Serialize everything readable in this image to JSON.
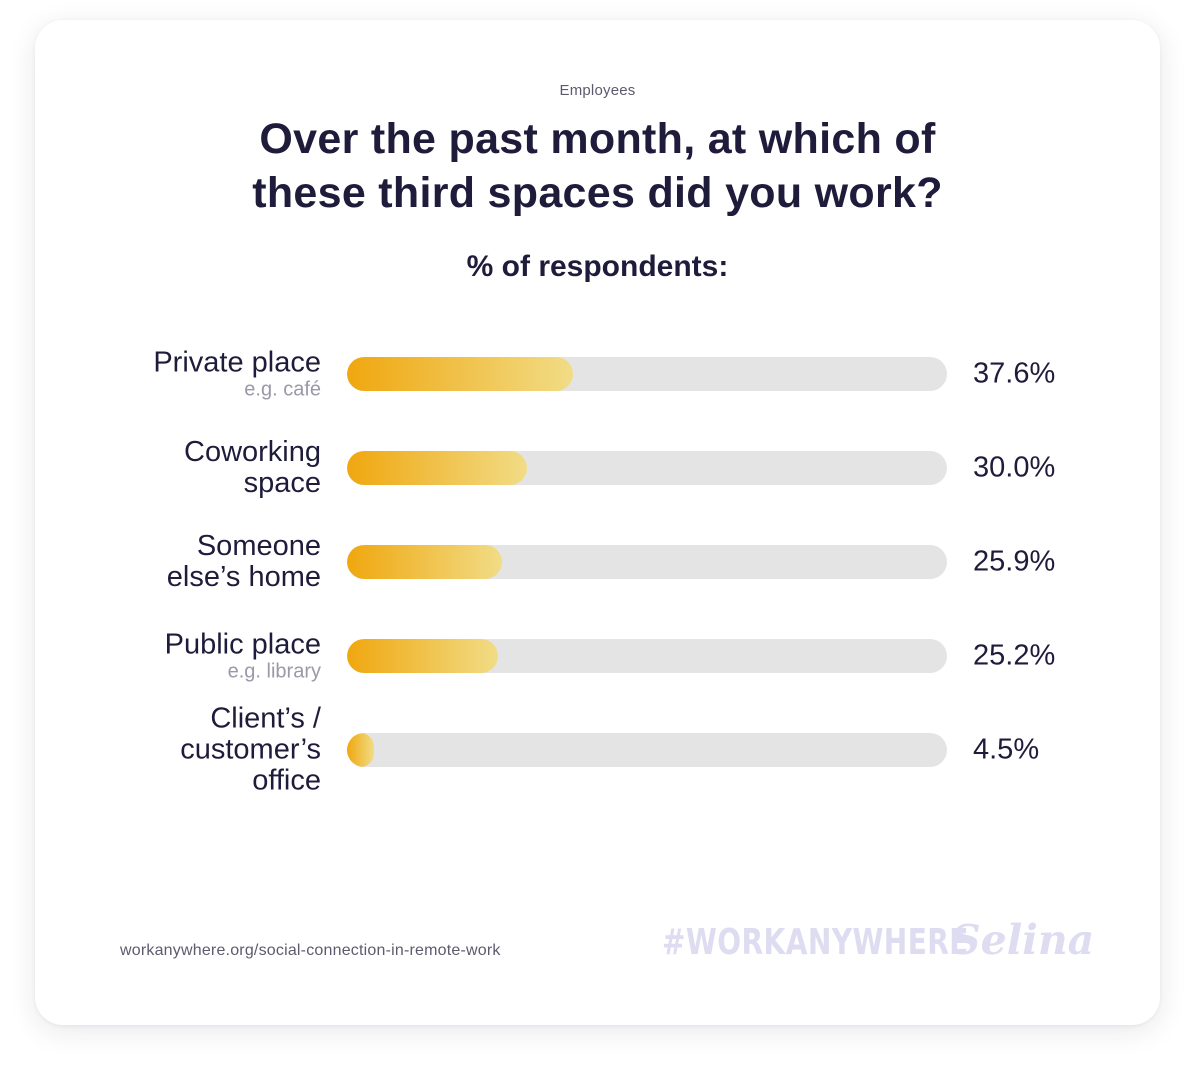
{
  "header": {
    "eyebrow": "Employees",
    "title": "Over the past month, at which of\nthese third spaces did you work?",
    "subtitle": "% of respondents:"
  },
  "chart_data": {
    "type": "bar",
    "orientation": "horizontal",
    "title": "Over the past month, at which of these third spaces did you work?",
    "subtitle": "% of respondents:",
    "xlim": [
      0,
      100
    ],
    "grid": false,
    "bar_gradient": [
      "#f0a70f",
      "#f1dc86"
    ],
    "track_color": "#e4e4e4",
    "categories": [
      {
        "label": "Private place",
        "sublabel": "e.g. café",
        "value": 37.6,
        "value_label": "37.6%"
      },
      {
        "label": "Coworking\nspace",
        "sublabel": "",
        "value": 30.0,
        "value_label": "30.0%"
      },
      {
        "label": "Someone\nelse’s home",
        "sublabel": "",
        "value": 25.9,
        "value_label": "25.9%"
      },
      {
        "label": "Public place",
        "sublabel": "e.g. library",
        "value": 25.2,
        "value_label": "25.2%"
      },
      {
        "label": "Client’s /\ncustomer’s\noffice",
        "sublabel": "",
        "value": 4.5,
        "value_label": "4.5%"
      }
    ]
  },
  "footer": {
    "source": "workanywhere.org/social-connection-in-remote-work",
    "hashtag": "#WORKANYWHERE",
    "brand": "Selina"
  }
}
